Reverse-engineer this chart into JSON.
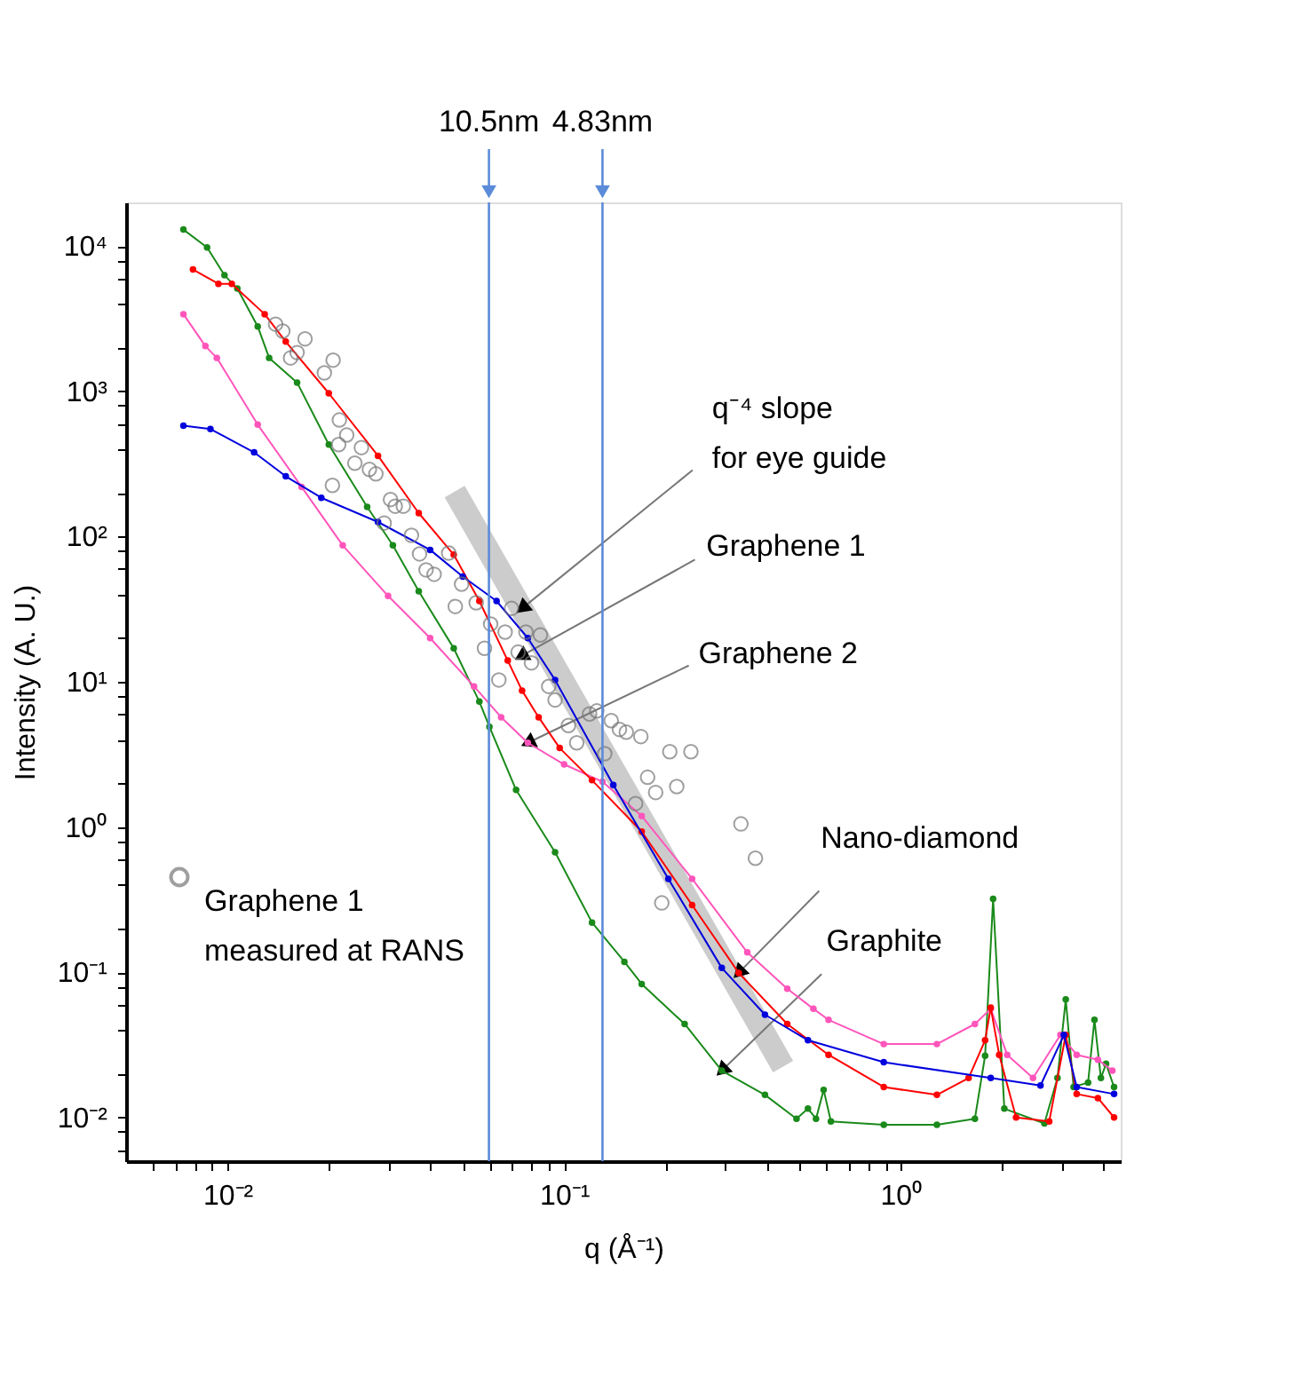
{
  "chart_data": {
    "type": "line",
    "xlabel": "q (Å⁻¹)",
    "ylabel": "Intensity (A. U.)",
    "log": "xy",
    "xlim": [
      0.005,
      4.5
    ],
    "ylim": [
      0.005,
      20000
    ],
    "xticks": [
      {
        "value": 0.006,
        "label": null
      },
      {
        "value": 0.007,
        "label": null
      },
      {
        "value": 0.008,
        "label": null
      },
      {
        "value": 0.009,
        "label": null
      },
      {
        "value": 0.01,
        "label": "10⁻²"
      },
      {
        "value": 0.02,
        "label": null
      },
      {
        "value": 0.03,
        "label": null
      },
      {
        "value": 0.04,
        "label": null
      },
      {
        "value": 0.05,
        "label": null
      },
      {
        "value": 0.06,
        "label": null
      },
      {
        "value": 0.07,
        "label": null
      },
      {
        "value": 0.08,
        "label": null
      },
      {
        "value": 0.09,
        "label": null
      },
      {
        "value": 0.1,
        "label": "10⁻¹"
      },
      {
        "value": 0.2,
        "label": null
      },
      {
        "value": 0.3,
        "label": null
      },
      {
        "value": 0.4,
        "label": null
      },
      {
        "value": 0.5,
        "label": null
      },
      {
        "value": 0.6,
        "label": null
      },
      {
        "value": 0.7,
        "label": null
      },
      {
        "value": 0.8,
        "label": null
      },
      {
        "value": 0.9,
        "label": null
      },
      {
        "value": 1,
        "label": "10⁰"
      },
      {
        "value": 2,
        "label": null
      },
      {
        "value": 3,
        "label": null
      },
      {
        "value": 4,
        "label": null
      }
    ],
    "yticks": [
      {
        "value": 0.006,
        "label": null
      },
      {
        "value": 0.008,
        "label": null
      },
      {
        "value": 0.01,
        "label": "10⁻²"
      },
      {
        "value": 0.02,
        "label": null
      },
      {
        "value": 0.04,
        "label": null
      },
      {
        "value": 0.06,
        "label": null
      },
      {
        "value": 0.08,
        "label": null
      },
      {
        "value": 0.1,
        "label": "10⁻¹"
      },
      {
        "value": 0.2,
        "label": null
      },
      {
        "value": 0.4,
        "label": null
      },
      {
        "value": 0.6,
        "label": null
      },
      {
        "value": 0.8,
        "label": null
      },
      {
        "value": 1,
        "label": "10⁰"
      },
      {
        "value": 2,
        "label": null
      },
      {
        "value": 4,
        "label": null
      },
      {
        "value": 6,
        "label": null
      },
      {
        "value": 8,
        "label": null
      },
      {
        "value": 10,
        "label": "10¹"
      },
      {
        "value": 20,
        "label": null
      },
      {
        "value": 40,
        "label": null
      },
      {
        "value": 60,
        "label": null
      },
      {
        "value": 80,
        "label": null
      },
      {
        "value": 100,
        "label": "10²"
      },
      {
        "value": 200,
        "label": null
      },
      {
        "value": 400,
        "label": null
      },
      {
        "value": 600,
        "label": null
      },
      {
        "value": 800,
        "label": null
      },
      {
        "value": 1000,
        "label": "10³"
      },
      {
        "value": 2000,
        "label": null
      },
      {
        "value": 4000,
        "label": null
      },
      {
        "value": 6000,
        "label": null
      },
      {
        "value": 8000,
        "label": null
      },
      {
        "value": 10000,
        "label": "10⁴"
      }
    ],
    "legend": "bottom left",
    "marker": "circle",
    "series": [
      {
        "marker": "none",
        "color": "#cccccc",
        "x": [
          0.0473,
          0.447
        ],
        "values": [
          204,
          0.0224
        ]
      },
      {
        "color": "#1a8a1a",
        "x": [
          0.0074,
          0.0087,
          0.0098,
          0.0107,
          0.0123,
          0.0133,
          0.0161,
          0.02,
          0.026,
          0.031,
          0.037,
          0.047,
          0.056,
          0.06,
          0.072,
          0.094,
          0.121,
          0.151,
          0.17,
          0.228,
          0.294,
          0.395,
          0.49,
          0.53,
          0.56,
          0.59,
          0.62,
          0.89,
          1.28,
          1.66,
          1.78,
          1.88,
          2.03,
          2.67,
          2.92,
          3.09,
          3.26,
          3.6,
          3.76,
          3.93,
          4.07,
          4.3
        ],
        "values": [
          13000,
          9800,
          6300,
          5100,
          2800,
          1700,
          1150,
          430,
          160,
          87,
          42,
          17,
          7.3,
          4.9,
          1.8,
          0.67,
          0.22,
          0.118,
          0.083,
          0.044,
          0.021,
          0.0143,
          0.0098,
          0.0115,
          0.0098,
          0.0155,
          0.0094,
          0.0089,
          0.0089,
          0.0098,
          0.0266,
          0.32,
          0.0115,
          0.0091,
          0.0187,
          0.065,
          0.0162,
          0.0174,
          0.047,
          0.0187,
          0.0234,
          0.0162
        ]
      },
      {
        "color": "#ff55bb",
        "x": [
          0.0074,
          0.0086,
          0.0093,
          0.0123,
          0.0166,
          0.022,
          0.03,
          0.04,
          0.054,
          0.065,
          0.078,
          0.1,
          0.13,
          0.17,
          0.24,
          0.35,
          0.46,
          0.55,
          0.61,
          0.89,
          1.28,
          1.66,
          1.85,
          2.07,
          2.47,
          2.98,
          3.33,
          3.85,
          4.25
        ],
        "values": [
          3400,
          2050,
          1700,
          590,
          220,
          87,
          39,
          20,
          9.3,
          5.7,
          3.8,
          2.7,
          2.05,
          1.19,
          0.44,
          0.137,
          0.077,
          0.056,
          0.047,
          0.032,
          0.032,
          0.044,
          0.056,
          0.027,
          0.0187,
          0.037,
          0.027,
          0.025,
          0.021
        ]
      },
      {
        "color": "#ff0000",
        "x": [
          0.0079,
          0.0094,
          0.0103,
          0.0129,
          0.0149,
          0.02,
          0.028,
          0.037,
          0.047,
          0.056,
          0.068,
          0.075,
          0.084,
          0.097,
          0.121,
          0.17,
          0.24,
          0.33,
          0.46,
          0.61,
          0.89,
          1.28,
          1.59,
          1.78,
          1.85,
          1.96,
          2.2,
          2.76,
          3.09,
          3.33,
          3.85,
          4.3
        ],
        "values": [
          6900,
          5500,
          5500,
          3400,
          2200,
          970,
          360,
          145,
          75,
          36,
          14,
          8.7,
          5.7,
          3.5,
          2.1,
          0.93,
          0.29,
          0.099,
          0.044,
          0.027,
          0.0162,
          0.0143,
          0.0187,
          0.034,
          0.057,
          0.027,
          0.01,
          0.0094,
          0.037,
          0.0145,
          0.0136,
          0.01
        ]
      },
      {
        "color": "#0000dd",
        "x": [
          0.0074,
          0.0089,
          0.012,
          0.0149,
          0.019,
          0.028,
          0.04,
          0.05,
          0.063,
          0.078,
          0.094,
          0.14,
          0.204,
          0.294,
          0.395,
          0.53,
          0.89,
          1.85,
          2.6,
          3.05,
          3.33,
          4.3
        ],
        "values": [
          580,
          550,
          380,
          260,
          185,
          126,
          81,
          53,
          36,
          20,
          10.3,
          1.95,
          0.44,
          0.107,
          0.051,
          0.034,
          0.024,
          0.0187,
          0.0166,
          0.037,
          0.0162,
          0.0145
        ]
      },
      {
        "type": "scatter",
        "name": "Graphene 1 measured at RANS",
        "color": "#777777",
        "x": [
          0.0139,
          0.0146,
          0.017,
          0.0161,
          0.0154,
          0.0206,
          0.0194,
          0.0215,
          0.0226,
          0.0214,
          0.025,
          0.0239,
          0.0264,
          0.0276,
          0.0205,
          0.0305,
          0.0333,
          0.0315,
          0.0292,
          0.0352,
          0.0372,
          0.0454,
          0.0389,
          0.0411,
          0.0496,
          0.0548,
          0.0475,
          0.0605,
          0.0698,
          0.0668,
          0.058,
          0.073,
          0.077,
          0.085,
          0.08,
          0.064,
          0.09,
          0.094,
          0.103,
          0.109,
          0.119,
          0.125,
          0.132,
          0.138,
          0.146,
          0.153,
          0.169,
          0.163,
          0.177,
          0.187,
          0.206,
          0.216,
          0.238,
          0.335,
          0.37,
          0.195
        ],
        "values": [
          2900,
          2600,
          2300,
          1850,
          1700,
          1640,
          1340,
          635,
          500,
          430,
          410,
          320,
          290,
          270,
          225,
          180,
          162,
          162,
          124,
          102,
          76,
          77,
          59,
          55,
          47,
          35,
          33,
          25,
          32,
          22,
          17,
          16,
          22,
          21,
          13.5,
          10.3,
          9.3,
          7.5,
          5.0,
          3.8,
          6.0,
          6.3,
          3.2,
          5.4,
          4.7,
          4.5,
          4.2,
          1.45,
          2.2,
          1.73,
          3.3,
          1.9,
          3.3,
          1.05,
          0.61,
          0.3
        ]
      }
    ],
    "ref_lines": [
      {
        "axis": "x",
        "value": 0.0598,
        "label": "10.5nm",
        "color": "#5b8bd9"
      },
      {
        "axis": "x",
        "value": 0.13,
        "label": "4.83nm",
        "color": "#5b8bd9"
      }
    ],
    "annotations": [
      {
        "text": "q⁻⁴ slope for eye guide",
        "x": 0.075,
        "y": 32
      },
      {
        "text": "Graphene 1",
        "x": 0.0745,
        "y": 15
      },
      {
        "text": "Graphene 2",
        "x": 0.078,
        "y": 3.8
      },
      {
        "text": "Nano-diamond",
        "x": 0.33,
        "y": 0.099
      },
      {
        "text": "Graphite",
        "x": 0.294,
        "y": 0.021
      }
    ]
  }
}
